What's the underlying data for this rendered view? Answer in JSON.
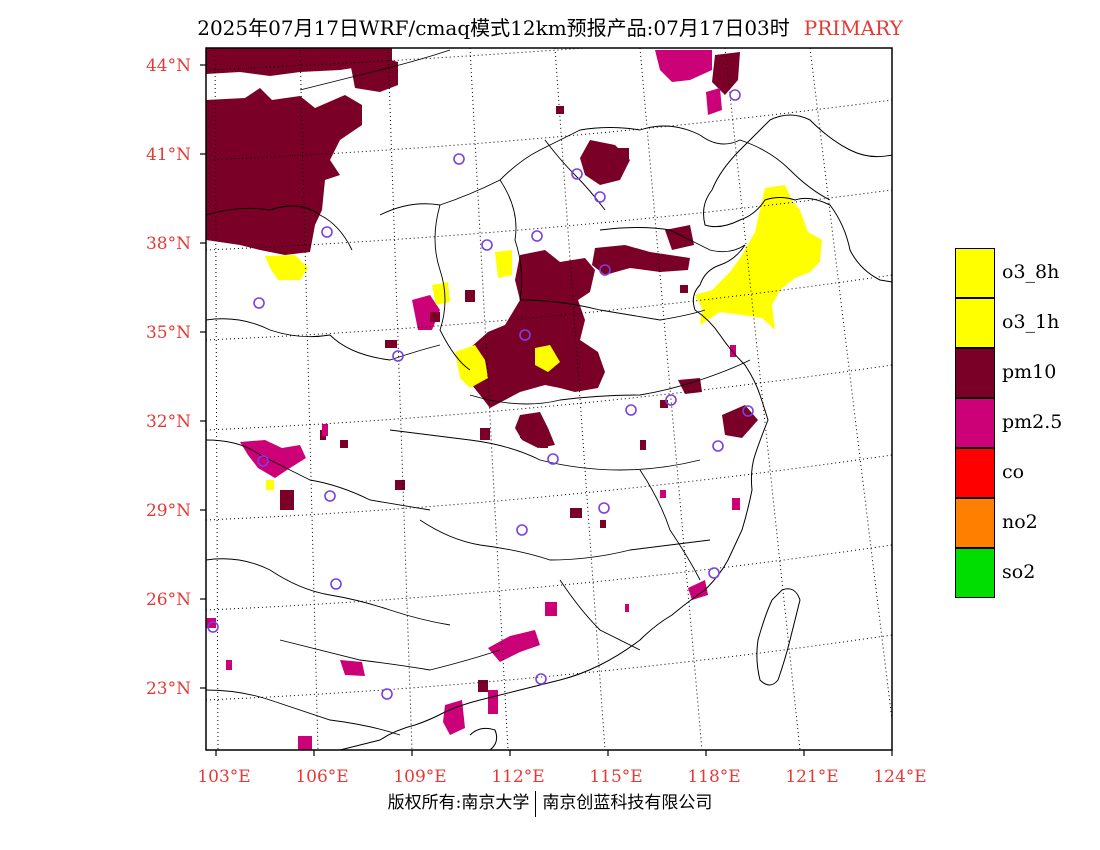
{
  "title": {
    "main": "2025年07月17日WRF/cmaq模式12km预报产品:07月17日03时",
    "tag": "PRIMARY",
    "tag_color": "#e53935"
  },
  "axes": {
    "lat_labels": [
      "44°N",
      "41°N",
      "38°N",
      "35°N",
      "32°N",
      "29°N",
      "26°N",
      "23°N"
    ],
    "lon_labels": [
      "103°E",
      "106°E",
      "109°E",
      "112°E",
      "115°E",
      "118°E",
      "121°E",
      "124°E"
    ],
    "label_color": "#e53935"
  },
  "legend": [
    {
      "label": "o3_8h",
      "color": "#ffff00"
    },
    {
      "label": "o3_1h",
      "color": "#ffff00"
    },
    {
      "label": "pm10",
      "color": "#7a0028"
    },
    {
      "label": "pm2.5",
      "color": "#cc0077"
    },
    {
      "label": "co",
      "color": "#ff0000"
    },
    {
      "label": "no2",
      "color": "#ff8000"
    },
    {
      "label": "so2",
      "color": "#00dd00"
    }
  ],
  "footer": {
    "left": "版权所有:南京大学",
    "right": "南京创蓝科技有限公司"
  },
  "station_marker_color": "#7b3fe4"
}
